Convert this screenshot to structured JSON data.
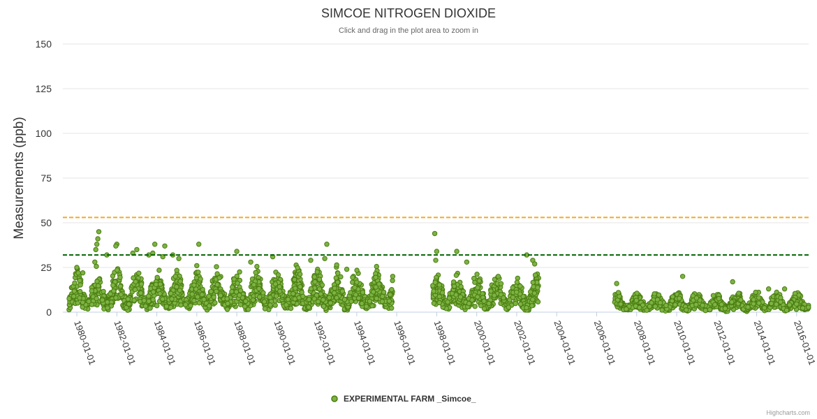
{
  "chart_data": {
    "type": "scatter",
    "title": "SIMCOE NITROGEN DIOXIDE",
    "subtitle": "Click and drag in the plot area to zoom in",
    "ylabel": "Measurements (ppb)",
    "xlabel": "",
    "ylim": [
      0,
      150
    ],
    "xlim_years": [
      1979.3,
      2016.6
    ],
    "yticks": [
      "0",
      "25",
      "50",
      "75",
      "100",
      "125",
      "150"
    ],
    "ytick_values": [
      0,
      25,
      50,
      75,
      100,
      125,
      150
    ],
    "xticks": [
      "1980-01-01",
      "1982-01-01",
      "1984-01-01",
      "1986-01-01",
      "1988-01-01",
      "1990-01-01",
      "1992-01-01",
      "1994-01-01",
      "1996-01-01",
      "1998-01-01",
      "2000-01-01",
      "2002-01-01",
      "2004-01-01",
      "2006-01-01",
      "2008-01-01",
      "2010-01-01",
      "2012-01-01",
      "2014-01-01",
      "2016-01-01"
    ],
    "xtick_years": [
      1980,
      1982,
      1984,
      1986,
      1988,
      1990,
      1992,
      1994,
      1996,
      1998,
      2000,
      2002,
      2004,
      2006,
      2008,
      2010,
      2012,
      2014,
      2016
    ],
    "reference_lines": [
      {
        "value": 53,
        "color": "#f5a623",
        "style": "dashed"
      },
      {
        "value": 32,
        "color": "#006400",
        "style": "dashed"
      }
    ],
    "series": [
      {
        "name": "EXPERIMENTAL FARM _Simcoe_",
        "color": "#7cb342",
        "stroke": "#4a7c10",
        "segments": [
          {
            "start": 1979.6,
            "end": 1995.8,
            "base": 10,
            "spread": 14
          },
          {
            "start": 1997.8,
            "end": 2003.1,
            "base": 9,
            "spread": 12
          },
          {
            "start": 2006.9,
            "end": 2016.6,
            "base": 5,
            "spread": 6
          }
        ],
        "peaks": [
          {
            "x": 1980.0,
            "y": 25
          },
          {
            "x": 1980.3,
            "y": 22
          },
          {
            "x": 1980.9,
            "y": 28
          },
          {
            "x": 1981.1,
            "y": 45
          },
          {
            "x": 1981.05,
            "y": 41
          },
          {
            "x": 1981.0,
            "y": 38
          },
          {
            "x": 1980.95,
            "y": 35
          },
          {
            "x": 1981.5,
            "y": 32
          },
          {
            "x": 1982.0,
            "y": 38
          },
          {
            "x": 1981.95,
            "y": 37
          },
          {
            "x": 1983.0,
            "y": 35
          },
          {
            "x": 1982.8,
            "y": 33
          },
          {
            "x": 1983.6,
            "y": 32
          },
          {
            "x": 1983.9,
            "y": 38
          },
          {
            "x": 1983.8,
            "y": 33
          },
          {
            "x": 1984.4,
            "y": 37
          },
          {
            "x": 1984.3,
            "y": 31
          },
          {
            "x": 1984.8,
            "y": 32
          },
          {
            "x": 1985.1,
            "y": 30
          },
          {
            "x": 1986.1,
            "y": 38
          },
          {
            "x": 1986.0,
            "y": 26
          },
          {
            "x": 1988.0,
            "y": 34
          },
          {
            "x": 1988.7,
            "y": 28
          },
          {
            "x": 1989.8,
            "y": 31
          },
          {
            "x": 1991.7,
            "y": 29
          },
          {
            "x": 1992.5,
            "y": 38
          },
          {
            "x": 1992.4,
            "y": 30
          },
          {
            "x": 1993.5,
            "y": 24
          },
          {
            "x": 1995.8,
            "y": 20
          },
          {
            "x": 1997.9,
            "y": 44
          },
          {
            "x": 1998.0,
            "y": 34
          },
          {
            "x": 1997.95,
            "y": 29
          },
          {
            "x": 1999.0,
            "y": 34
          },
          {
            "x": 1999.5,
            "y": 28
          },
          {
            "x": 2002.5,
            "y": 32
          },
          {
            "x": 2002.8,
            "y": 29
          },
          {
            "x": 2002.9,
            "y": 27
          },
          {
            "x": 2007.0,
            "y": 16
          },
          {
            "x": 2010.3,
            "y": 20
          },
          {
            "x": 2012.8,
            "y": 17
          },
          {
            "x": 2014.6,
            "y": 13
          },
          {
            "x": 2015.4,
            "y": 13
          }
        ]
      }
    ],
    "legend": {
      "label": "EXPERIMENTAL FARM _Simcoe_",
      "placement": "bottom-center"
    },
    "credits": "Highcharts.com"
  }
}
